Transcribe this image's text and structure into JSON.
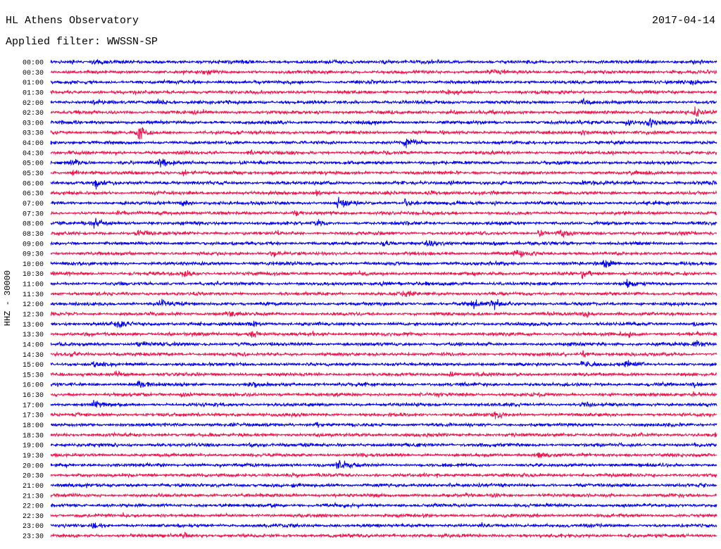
{
  "colors": {
    "trace_blue": "#0000f0",
    "trace_red": "#f0124a",
    "text": "#000000",
    "background": "#ffffff"
  },
  "chart_data": {
    "type": "line",
    "title": "HL Athens Observatory",
    "date": "2017-04-14",
    "subtitle": "Applied filter: WWSSN-SP",
    "ylabel": "HHZ - 30000",
    "row_labels": [
      "00:00",
      "00:30",
      "01:00",
      "01:30",
      "02:00",
      "02:30",
      "03:00",
      "03:30",
      "04:00",
      "04:30",
      "05:00",
      "05:30",
      "06:00",
      "06:30",
      "07:00",
      "07:30",
      "08:00",
      "08:30",
      "09:00",
      "09:30",
      "10:00",
      "10:30",
      "11:00",
      "11:30",
      "12:00",
      "12:30",
      "13:00",
      "13:30",
      "14:00",
      "14:30",
      "15:00",
      "15:30",
      "16:00",
      "16:30",
      "17:00",
      "17:30",
      "18:00",
      "18:30",
      "19:00",
      "19:30",
      "20:00",
      "20:30",
      "21:00",
      "21:30",
      "22:00",
      "22:30",
      "23:00",
      "23:30"
    ],
    "bursts": [
      [
        "00:01",
        2
      ],
      [
        "00:02",
        2
      ],
      [
        "00:15",
        2.5
      ],
      [
        "00:29",
        2.5
      ],
      [
        "00:37",
        2
      ],
      [
        "00:50",
        3
      ],
      [
        "00:58",
        1.5
      ],
      [
        "01:29",
        2
      ],
      [
        "01:48",
        2
      ],
      [
        "02:02",
        2
      ],
      [
        "02:05",
        3
      ],
      [
        "02:24",
        3
      ],
      [
        "02:48",
        3
      ],
      [
        "02:59",
        4
      ],
      [
        "03:26",
        4
      ],
      [
        "03:27",
        3.5
      ],
      [
        "03:29",
        2.5
      ],
      [
        "03:34",
        4.5
      ],
      [
        "03:54",
        2.5
      ],
      [
        "03:55",
        2
      ],
      [
        "04:00",
        3
      ],
      [
        "04:16",
        3
      ],
      [
        "04:39",
        3
      ],
      [
        "05:01",
        3
      ],
      [
        "05:05",
        3
      ],
      [
        "05:31",
        3
      ],
      [
        "05:36",
        3
      ],
      [
        "05:40",
        2.5
      ],
      [
        "06:02",
        3.5
      ],
      [
        "06:18",
        3
      ],
      [
        "06:24",
        2.5
      ],
      [
        "06:42",
        3
      ],
      [
        "06:47",
        3.5
      ],
      [
        "07:06",
        3
      ],
      [
        "07:13",
        4.5
      ],
      [
        "07:16",
        4.5
      ],
      [
        "07:20",
        2.5
      ],
      [
        "07:35",
        3
      ],
      [
        "07:41",
        2.5
      ],
      [
        "07:45",
        2.5
      ],
      [
        "08:00",
        3
      ],
      [
        "08:02",
        3.5
      ],
      [
        "08:12",
        3
      ],
      [
        "08:34",
        3
      ],
      [
        "08:52",
        3
      ],
      [
        "08:53",
        3
      ],
      [
        "09:15",
        3
      ],
      [
        "09:17",
        3
      ],
      [
        "09:20",
        2.5
      ],
      [
        "09:40",
        3.5
      ],
      [
        "09:51",
        3
      ],
      [
        "10:25",
        4
      ],
      [
        "10:36",
        3.5
      ],
      [
        "10:54",
        3
      ],
      [
        "11:15",
        3
      ],
      [
        "11:26",
        2.5
      ],
      [
        "11:46",
        2.5
      ],
      [
        "12:05",
        3
      ],
      [
        "12:19",
        3.5
      ],
      [
        "12:20",
        3.5
      ],
      [
        "12:38",
        2.5
      ],
      [
        "12:54",
        2.5
      ],
      [
        "13:03",
        2.5
      ],
      [
        "13:09",
        3
      ],
      [
        "13:29",
        2.5
      ],
      [
        "13:39",
        4
      ],
      [
        "13:56",
        3
      ],
      [
        "14:04",
        2.5
      ],
      [
        "14:29",
        3.5
      ],
      [
        "14:31",
        2.5
      ],
      [
        "14:54",
        3
      ],
      [
        "15:02",
        2.5
      ],
      [
        "15:24",
        3.5
      ],
      [
        "15:26",
        2.5
      ],
      [
        "15:33",
        2.5
      ],
      [
        "15:48",
        2.5
      ],
      [
        "16:04",
        3
      ],
      [
        "16:09",
        3.5
      ],
      [
        "16:29",
        2.5
      ],
      [
        "16:36",
        2.5
      ],
      [
        "16:59",
        2.5
      ],
      [
        "17:02",
        2.5
      ],
      [
        "17:24",
        2.5
      ],
      [
        "17:50",
        2.5
      ],
      [
        "18:12",
        2
      ],
      [
        "19:09",
        2.5
      ],
      [
        "19:52",
        3
      ],
      [
        "20:13",
        3.5
      ],
      [
        "20:41",
        2
      ],
      [
        "21:18",
        2
      ],
      [
        "21:50",
        2
      ],
      [
        "22:10",
        2.5
      ],
      [
        "22:35",
        2
      ],
      [
        "23:02",
        2
      ],
      [
        "23:36",
        2.5
      ],
      [
        "23:56",
        2
      ]
    ]
  }
}
